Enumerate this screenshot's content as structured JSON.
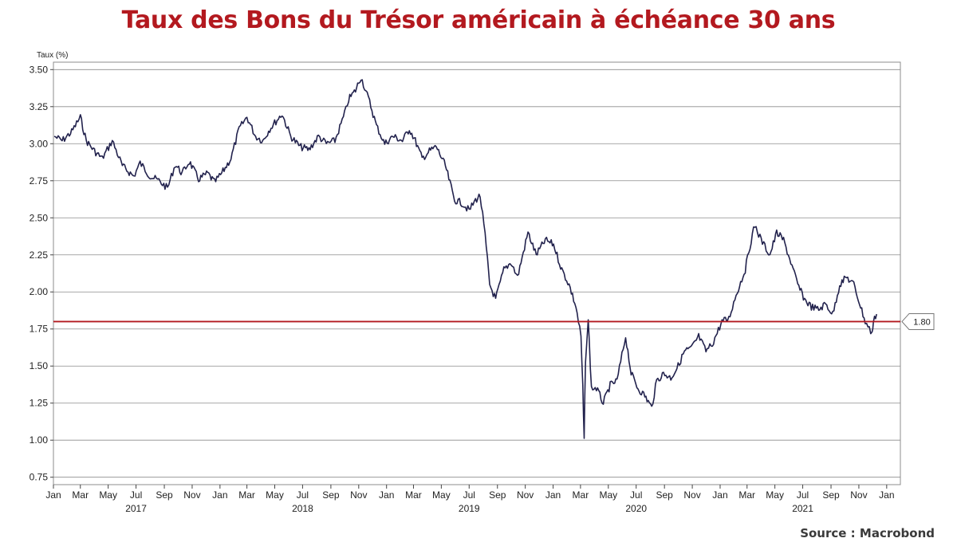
{
  "title": "Taux des Bons du Trésor américain à échéance 30 ans",
  "source": "Source : Macrobond",
  "colors": {
    "title": "#b3191f",
    "line": "#22224d",
    "reference": "#b3191f",
    "grid": "#8c8c8c"
  },
  "chart_data": {
    "type": "line",
    "title": "Taux des Bons du Trésor américain à échéance 30 ans",
    "ylabel": "Taux (%)",
    "xlabel": "",
    "ylim": [
      0.7,
      3.55
    ],
    "xlim": [
      "2017-01-01",
      "2022-01-31"
    ],
    "y_ticks": [
      "3.50",
      "3.25",
      "3.00",
      "2.75",
      "2.50",
      "2.25",
      "2.00",
      "1.75",
      "1.50",
      "1.25",
      "1.00",
      "0.75"
    ],
    "x_ticks": [
      {
        "label": "Jan",
        "date": "2017-01-01"
      },
      {
        "label": "Mar",
        "date": "2017-03-01"
      },
      {
        "label": "May",
        "date": "2017-05-01"
      },
      {
        "label": "Jul",
        "date": "2017-07-01"
      },
      {
        "label": "Sep",
        "date": "2017-09-01"
      },
      {
        "label": "Nov",
        "date": "2017-11-01"
      },
      {
        "label": "Jan",
        "date": "2018-01-01"
      },
      {
        "label": "Mar",
        "date": "2018-03-01"
      },
      {
        "label": "May",
        "date": "2018-05-01"
      },
      {
        "label": "Jul",
        "date": "2018-07-01"
      },
      {
        "label": "Sep",
        "date": "2018-09-01"
      },
      {
        "label": "Nov",
        "date": "2018-11-01"
      },
      {
        "label": "Jan",
        "date": "2019-01-01"
      },
      {
        "label": "Mar",
        "date": "2019-03-01"
      },
      {
        "label": "May",
        "date": "2019-05-01"
      },
      {
        "label": "Jul",
        "date": "2019-07-01"
      },
      {
        "label": "Sep",
        "date": "2019-09-01"
      },
      {
        "label": "Nov",
        "date": "2019-11-01"
      },
      {
        "label": "Jan",
        "date": "2020-01-01"
      },
      {
        "label": "Mar",
        "date": "2020-03-01"
      },
      {
        "label": "May",
        "date": "2020-05-01"
      },
      {
        "label": "Jul",
        "date": "2020-07-01"
      },
      {
        "label": "Sep",
        "date": "2020-09-01"
      },
      {
        "label": "Nov",
        "date": "2020-11-01"
      },
      {
        "label": "Jan",
        "date": "2021-01-01"
      },
      {
        "label": "Mar",
        "date": "2021-03-01"
      },
      {
        "label": "May",
        "date": "2021-05-01"
      },
      {
        "label": "Jul",
        "date": "2021-07-01"
      },
      {
        "label": "Sep",
        "date": "2021-09-01"
      },
      {
        "label": "Nov",
        "date": "2021-11-01"
      },
      {
        "label": "Jan",
        "date": "2022-01-01"
      }
    ],
    "year_labels": [
      {
        "label": "2017",
        "date": "2017-07-01"
      },
      {
        "label": "2018",
        "date": "2018-07-01"
      },
      {
        "label": "2019",
        "date": "2019-07-01"
      },
      {
        "label": "2020",
        "date": "2020-07-01"
      },
      {
        "label": "2021",
        "date": "2021-07-01"
      }
    ],
    "reference_line": {
      "value": 1.8,
      "label": "1.80"
    },
    "grid": true,
    "series": [
      {
        "x": [
          "2017-01-03",
          "2017-01-20",
          "2017-02-10",
          "2017-03-01",
          "2017-03-14",
          "2017-04-01",
          "2017-04-18",
          "2017-05-10",
          "2017-06-01",
          "2017-06-26",
          "2017-07-10",
          "2017-08-01",
          "2017-08-20",
          "2017-09-08",
          "2017-09-25",
          "2017-10-10",
          "2017-10-26",
          "2017-11-15",
          "2017-12-05",
          "2017-12-20",
          "2018-01-05",
          "2018-01-25",
          "2018-02-12",
          "2018-03-01",
          "2018-03-20",
          "2018-04-05",
          "2018-04-20",
          "2018-05-17",
          "2018-06-05",
          "2018-06-25",
          "2018-07-15",
          "2018-08-05",
          "2018-08-22",
          "2018-09-10",
          "2018-10-01",
          "2018-10-10",
          "2018-10-25",
          "2018-11-06",
          "2018-11-25",
          "2018-12-10",
          "2018-12-28",
          "2019-01-15",
          "2019-02-05",
          "2019-02-20",
          "2019-03-05",
          "2019-03-20",
          "2019-04-05",
          "2019-04-20",
          "2019-05-10",
          "2019-05-30",
          "2019-06-15",
          "2019-07-01",
          "2019-07-15",
          "2019-07-25",
          "2019-08-05",
          "2019-08-15",
          "2019-08-28",
          "2019-09-15",
          "2019-10-01",
          "2019-10-15",
          "2019-11-07",
          "2019-11-25",
          "2019-12-15",
          "2020-01-02",
          "2020-01-20",
          "2020-02-05",
          "2020-02-20",
          "2020-03-02",
          "2020-03-06",
          "2020-03-09",
          "2020-03-12",
          "2020-03-18",
          "2020-03-25",
          "2020-04-05",
          "2020-04-20",
          "2020-05-05",
          "2020-05-20",
          "2020-06-08",
          "2020-06-20",
          "2020-07-05",
          "2020-07-20",
          "2020-08-04",
          "2020-08-15",
          "2020-08-30",
          "2020-09-15",
          "2020-10-01",
          "2020-10-15",
          "2020-10-30",
          "2020-11-15",
          "2020-12-01",
          "2020-12-15",
          "2021-01-05",
          "2021-01-20",
          "2021-02-05",
          "2021-02-25",
          "2021-03-10",
          "2021-03-18",
          "2021-04-01",
          "2021-04-20",
          "2021-05-05",
          "2021-05-20",
          "2021-06-05",
          "2021-06-20",
          "2021-07-05",
          "2021-07-20",
          "2021-08-05",
          "2021-08-20",
          "2021-09-05",
          "2021-09-20",
          "2021-10-05",
          "2021-10-21",
          "2021-11-05",
          "2021-11-15",
          "2021-11-24",
          "2021-11-30",
          "2021-12-03",
          "2021-12-10"
        ],
        "y": [
          3.05,
          3.02,
          3.08,
          3.18,
          3.02,
          2.95,
          2.9,
          3.02,
          2.85,
          2.78,
          2.87,
          2.78,
          2.75,
          2.7,
          2.86,
          2.8,
          2.88,
          2.76,
          2.8,
          2.74,
          2.8,
          2.9,
          3.1,
          3.18,
          3.05,
          3.02,
          3.1,
          3.2,
          3.05,
          2.98,
          2.96,
          3.05,
          3.0,
          3.02,
          3.2,
          3.3,
          3.36,
          3.45,
          3.28,
          3.12,
          3.0,
          3.05,
          3.02,
          3.1,
          3.02,
          2.9,
          2.95,
          2.98,
          2.85,
          2.62,
          2.6,
          2.55,
          2.62,
          2.65,
          2.38,
          2.05,
          1.95,
          2.15,
          2.2,
          2.1,
          2.4,
          2.25,
          2.35,
          2.32,
          2.15,
          2.05,
          1.9,
          1.7,
          1.35,
          1.0,
          1.55,
          1.8,
          1.35,
          1.35,
          1.25,
          1.37,
          1.4,
          1.7,
          1.45,
          1.35,
          1.3,
          1.22,
          1.4,
          1.45,
          1.42,
          1.5,
          1.6,
          1.62,
          1.7,
          1.6,
          1.65,
          1.8,
          1.82,
          1.98,
          2.15,
          2.35,
          2.45,
          2.35,
          2.25,
          2.4,
          2.35,
          2.2,
          2.05,
          1.95,
          1.9,
          1.88,
          1.92,
          1.85,
          2.05,
          2.1,
          2.05,
          1.9,
          1.8,
          1.75,
          1.72,
          1.8,
          1.85
        ]
      }
    ]
  }
}
